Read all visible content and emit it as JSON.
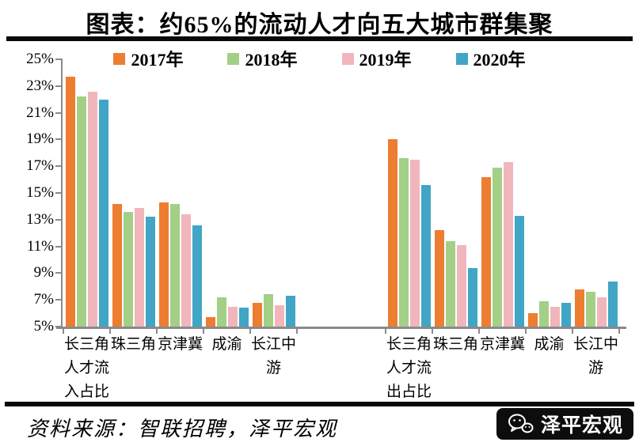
{
  "title": "图表：约65%的流动人才向五大城市群集聚",
  "legend": {
    "items": [
      {
        "label": "2017年",
        "color": "#ED7D31"
      },
      {
        "label": "2018年",
        "color": "#A3CF87"
      },
      {
        "label": "2019年",
        "color": "#F0B6BC"
      },
      {
        "label": "2020年",
        "color": "#41A5C6"
      }
    ]
  },
  "chart_data": {
    "type": "bar",
    "title": "图表：约65%的流动人才向五大城市群集聚",
    "unit": "%",
    "ylim": [
      5,
      25
    ],
    "ytick_step": 2,
    "yticks": [
      "25%",
      "23%",
      "21%",
      "19%",
      "17%",
      "15%",
      "13%",
      "11%",
      "9%",
      "7%",
      "5%"
    ],
    "grid": false,
    "legend_position": "top",
    "series_names": [
      "2017年",
      "2018年",
      "2019年",
      "2020年"
    ],
    "series_colors": [
      "#ED7D31",
      "#A3CF87",
      "#F0B6BC",
      "#41A5C6"
    ],
    "groups": [
      {
        "group_label": "人才流入占比",
        "categories": [
          "长三角人才流入占比",
          "珠三角",
          "京津冀",
          "成渝",
          "长江中游"
        ],
        "series": [
          {
            "name": "2017年",
            "values": [
              23.7,
              14.2,
              14.3,
              5.7,
              6.8
            ]
          },
          {
            "name": "2018年",
            "values": [
              22.2,
              13.6,
              14.2,
              7.2,
              7.4
            ]
          },
          {
            "name": "2019年",
            "values": [
              22.6,
              13.9,
              13.4,
              6.5,
              6.6
            ]
          },
          {
            "name": "2020年",
            "values": [
              22.0,
              13.2,
              12.6,
              6.4,
              7.3
            ]
          }
        ]
      },
      {
        "group_label": "人才流出占比",
        "categories": [
          "长三角人才流出占比",
          "珠三角",
          "京津冀",
          "成渝",
          "长江中游"
        ],
        "series": [
          {
            "name": "2017年",
            "values": [
              19.0,
              12.2,
              16.2,
              6.0,
              7.8
            ]
          },
          {
            "name": "2018年",
            "values": [
              17.6,
              11.4,
              16.9,
              6.9,
              7.6
            ]
          },
          {
            "name": "2019年",
            "values": [
              17.5,
              11.1,
              17.3,
              6.5,
              7.2
            ]
          },
          {
            "name": "2020年",
            "values": [
              15.6,
              9.4,
              13.3,
              6.8,
              8.4
            ]
          }
        ]
      }
    ]
  },
  "source": "资料来源：智联招聘，泽平宏观",
  "logo": {
    "text": "泽平宏观",
    "icon": "wechat-bubbles-icon"
  }
}
